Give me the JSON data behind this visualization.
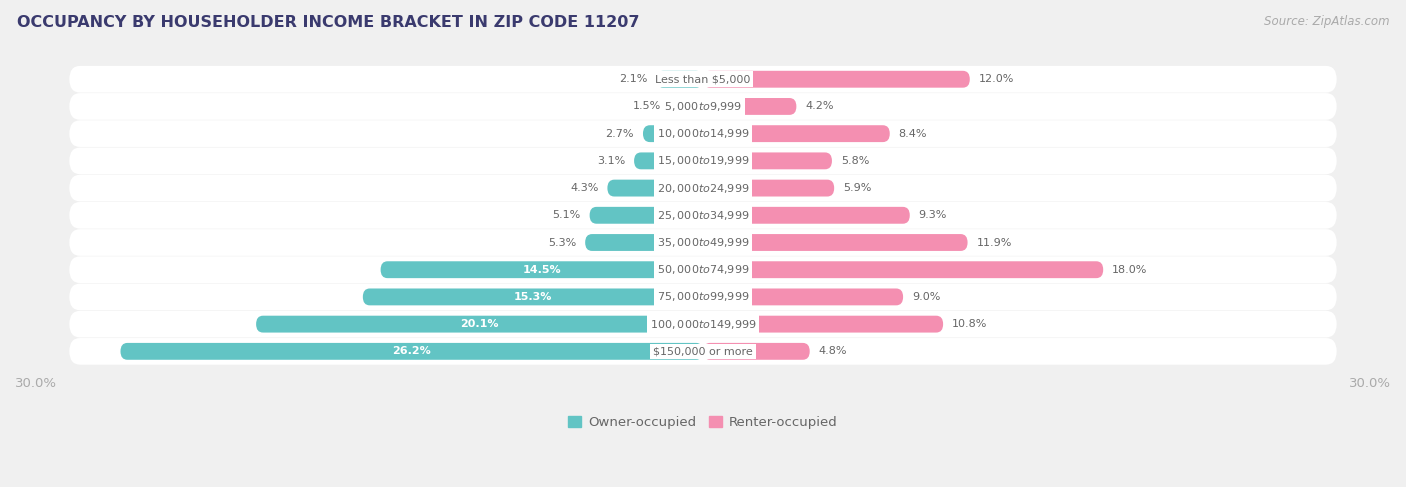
{
  "title": "OCCUPANCY BY HOUSEHOLDER INCOME BRACKET IN ZIP CODE 11207",
  "source": "Source: ZipAtlas.com",
  "categories": [
    "Less than $5,000",
    "$5,000 to $9,999",
    "$10,000 to $14,999",
    "$15,000 to $19,999",
    "$20,000 to $24,999",
    "$25,000 to $34,999",
    "$35,000 to $49,999",
    "$50,000 to $74,999",
    "$75,000 to $99,999",
    "$100,000 to $149,999",
    "$150,000 or more"
  ],
  "owner_values": [
    2.1,
    1.5,
    2.7,
    3.1,
    4.3,
    5.1,
    5.3,
    14.5,
    15.3,
    20.1,
    26.2
  ],
  "renter_values": [
    12.0,
    4.2,
    8.4,
    5.8,
    5.9,
    9.3,
    11.9,
    18.0,
    9.0,
    10.8,
    4.8
  ],
  "owner_color": "#62C4C4",
  "renter_color": "#F48FB1",
  "axis_limit": 30.0,
  "bg_color": "#f0f0f0",
  "row_bg_color": "#ffffff",
  "title_color": "#3a3a6e",
  "source_color": "#aaaaaa",
  "label_color": "#666666",
  "axis_label_color": "#aaaaaa",
  "bar_height": 0.62,
  "inside_label_threshold": 8.0,
  "cat_label_fontsize": 8.0,
  "val_label_fontsize": 8.0,
  "title_fontsize": 11.5,
  "source_fontsize": 8.5,
  "legend_fontsize": 9.5,
  "axis_tick_fontsize": 9.5
}
